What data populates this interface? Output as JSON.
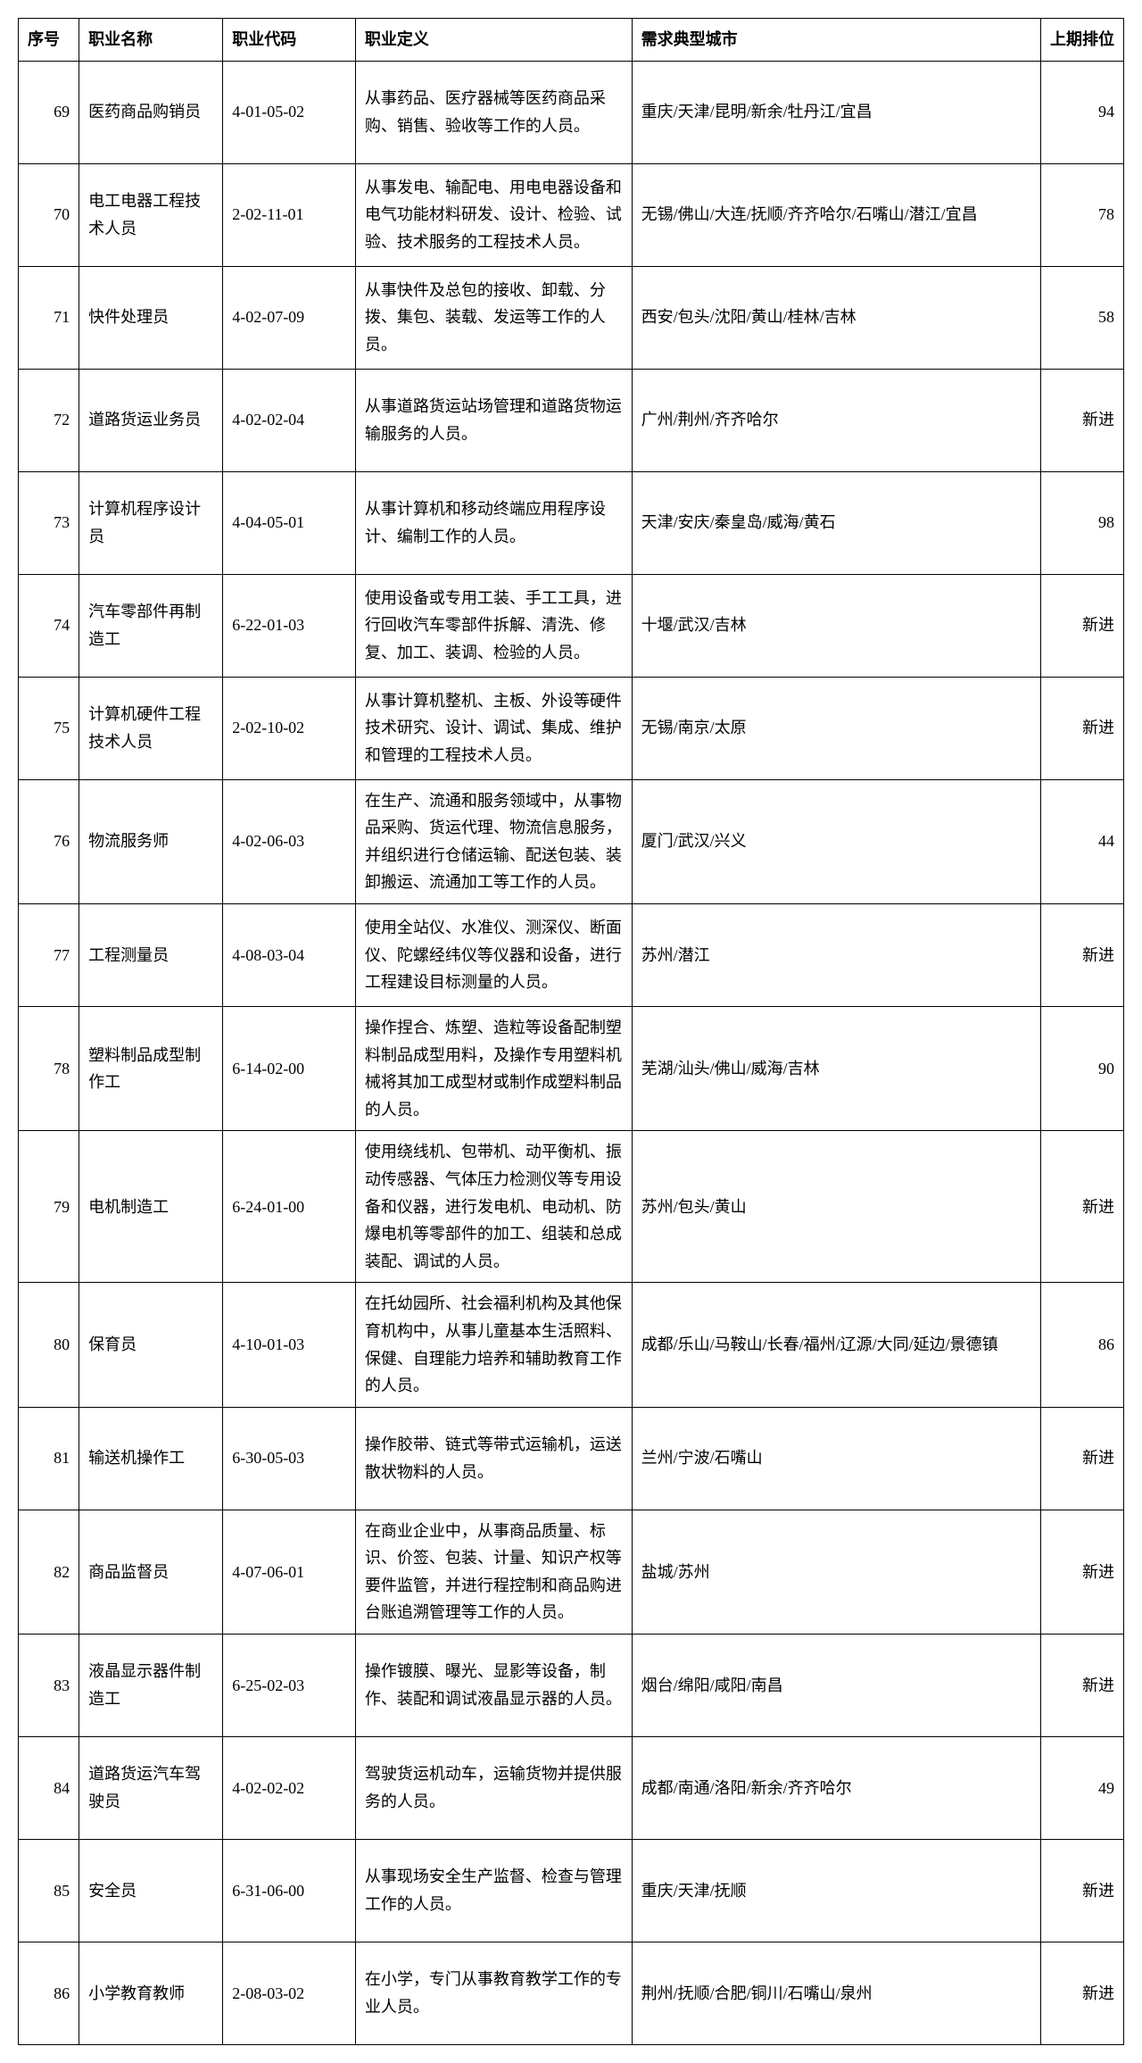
{
  "columns": {
    "seq": "序号",
    "name": "职业名称",
    "code": "职业代码",
    "def": "职业定义",
    "city": "需求典型城市",
    "rank": "上期排位"
  },
  "rows": [
    {
      "seq": "69",
      "name": "医药商品购销员",
      "code": "4-01-05-02",
      "def": "从事药品、医疗器械等医药商品采购、销售、验收等工作的人员。",
      "city": "重庆/天津/昆明/新余/牡丹江/宜昌",
      "rank": "94"
    },
    {
      "seq": "70",
      "name": "电工电器工程技术人员",
      "code": "2-02-11-01",
      "def": "从事发电、输配电、用电电器设备和电气功能材料研发、设计、检验、试验、技术服务的工程技术人员。",
      "city": "无锡/佛山/大连/抚顺/齐齐哈尔/石嘴山/潜江/宜昌",
      "rank": "78"
    },
    {
      "seq": "71",
      "name": "快件处理员",
      "code": "4-02-07-09",
      "def": "从事快件及总包的接收、卸载、分拨、集包、装载、发运等工作的人员。",
      "city": "西安/包头/沈阳/黄山/桂林/吉林",
      "rank": "58"
    },
    {
      "seq": "72",
      "name": "道路货运业务员",
      "code": "4-02-02-04",
      "def": "从事道路货运站场管理和道路货物运输服务的人员。",
      "city": "广州/荆州/齐齐哈尔",
      "rank": "新进"
    },
    {
      "seq": "73",
      "name": "计算机程序设计员",
      "code": "4-04-05-01",
      "def": "从事计算机和移动终端应用程序设计、编制工作的人员。",
      "city": "天津/安庆/秦皇岛/威海/黄石",
      "rank": "98"
    },
    {
      "seq": "74",
      "name": "汽车零部件再制造工",
      "code": "6-22-01-03",
      "def": "使用设备或专用工装、手工工具，进行回收汽车零部件拆解、清洗、修复、加工、装调、检验的人员。",
      "city": "十堰/武汉/吉林",
      "rank": "新进"
    },
    {
      "seq": "75",
      "name": "计算机硬件工程技术人员",
      "code": "2-02-10-02",
      "def": "从事计算机整机、主板、外设等硬件技术研究、设计、调试、集成、维护和管理的工程技术人员。",
      "city": "无锡/南京/太原",
      "rank": "新进"
    },
    {
      "seq": "76",
      "name": "物流服务师",
      "code": "4-02-06-03",
      "def": "在生产、流通和服务领域中，从事物品采购、货运代理、物流信息服务，并组织进行仓储运输、配送包装、装卸搬运、流通加工等工作的人员。",
      "city": "厦门/武汉/兴义",
      "rank": "44"
    },
    {
      "seq": "77",
      "name": "工程测量员",
      "code": "4-08-03-04",
      "def": "使用全站仪、水准仪、测深仪、断面仪、陀螺经纬仪等仪器和设备，进行工程建设目标测量的人员。",
      "city": "苏州/潜江",
      "rank": "新进"
    },
    {
      "seq": "78",
      "name": "塑料制品成型制作工",
      "code": "6-14-02-00",
      "def": "操作捏合、炼塑、造粒等设备配制塑料制品成型用料，及操作专用塑料机械将其加工成型材或制作成塑料制品的人员。",
      "city": "芜湖/汕头/佛山/威海/吉林",
      "rank": "90"
    },
    {
      "seq": "79",
      "name": "电机制造工",
      "code": "6-24-01-00",
      "def": "使用绕线机、包带机、动平衡机、振动传感器、气体压力检测仪等专用设备和仪器，进行发电机、电动机、防爆电机等零部件的加工、组装和总成装配、调试的人员。",
      "city": "苏州/包头/黄山",
      "rank": "新进"
    },
    {
      "seq": "80",
      "name": "保育员",
      "code": "4-10-01-03",
      "def": "在托幼园所、社会福利机构及其他保育机构中，从事儿童基本生活照料、保健、自理能力培养和辅助教育工作的人员。",
      "city": "成都/乐山/马鞍山/长春/福州/辽源/大同/延边/景德镇",
      "rank": "86"
    },
    {
      "seq": "81",
      "name": "输送机操作工",
      "code": "6-30-05-03",
      "def": "操作胶带、链式等带式运输机，运送散状物料的人员。",
      "city": "兰州/宁波/石嘴山",
      "rank": "新进"
    },
    {
      "seq": "82",
      "name": "商品监督员",
      "code": "4-07-06-01",
      "def": "在商业企业中，从事商品质量、标识、价签、包装、计量、知识产权等要件监管，并进行程控制和商品购进台账追溯管理等工作的人员。",
      "city": "盐城/苏州",
      "rank": "新进"
    },
    {
      "seq": "83",
      "name": "液晶显示器件制造工",
      "code": "6-25-02-03",
      "def": "操作镀膜、曝光、显影等设备，制作、装配和调试液晶显示器的人员。",
      "city": "烟台/绵阳/咸阳/南昌",
      "rank": "新进"
    },
    {
      "seq": "84",
      "name": "道路货运汽车驾驶员",
      "code": "4-02-02-02",
      "def": "驾驶货运机动车，运输货物并提供服务的人员。",
      "city": "成都/南通/洛阳/新余/齐齐哈尔",
      "rank": "49"
    },
    {
      "seq": "85",
      "name": "安全员",
      "code": "6-31-06-00",
      "def": "从事现场安全生产监督、检查与管理工作的人员。",
      "city": "重庆/天津/抚顺",
      "rank": "新进"
    },
    {
      "seq": "86",
      "name": "小学教育教师",
      "code": "2-08-03-02",
      "def": "在小学，专门从事教育教学工作的专业人员。",
      "city": "荆州/抚顺/合肥/铜川/石嘴山/泉州",
      "rank": "新进"
    }
  ]
}
